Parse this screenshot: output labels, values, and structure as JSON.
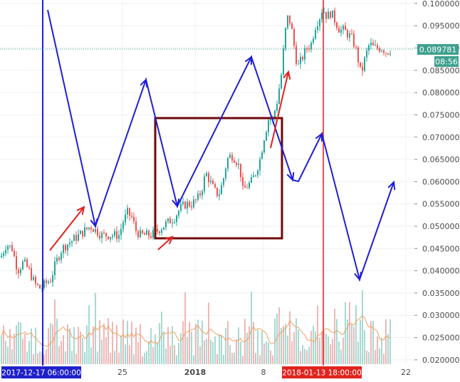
{
  "chart_data": {
    "type": "candlestick",
    "instrument_price_axis": {
      "ticks": [
        "0.100000",
        "0.095000",
        "0.090000",
        "0.085000",
        "0.080000",
        "0.075000",
        "0.070000",
        "0.065000",
        "0.060000",
        "0.055000",
        "0.050000",
        "0.045000",
        "0.040000",
        "0.035000",
        "0.030000",
        "0.025000",
        "0.020000"
      ],
      "range": [
        0.0195,
        0.1003
      ]
    },
    "time_axis": {
      "labels": [
        "25",
        "2018",
        "8",
        "22"
      ],
      "start_badge": "2017-12-17 06:00:00",
      "end_badge": "2018-01-13 18:00:00"
    },
    "last_price": "0.089781",
    "countdown": "08:56",
    "price_path": [
      [
        0,
        0.043
      ],
      [
        8,
        0.046
      ],
      [
        16,
        0.045
      ],
      [
        24,
        0.04
      ],
      [
        32,
        0.042
      ],
      [
        40,
        0.04
      ],
      [
        48,
        0.037
      ],
      [
        56,
        0.036
      ],
      [
        62,
        0.037
      ],
      [
        70,
        0.038
      ],
      [
        78,
        0.042
      ],
      [
        86,
        0.045
      ],
      [
        94,
        0.046
      ],
      [
        102,
        0.047
      ],
      [
        110,
        0.048
      ],
      [
        118,
        0.049
      ],
      [
        126,
        0.05
      ],
      [
        134,
        0.049
      ],
      [
        142,
        0.048
      ],
      [
        150,
        0.048
      ],
      [
        158,
        0.048
      ],
      [
        166,
        0.048
      ],
      [
        172,
        0.051
      ],
      [
        178,
        0.053
      ],
      [
        184,
        0.052
      ],
      [
        190,
        0.049
      ],
      [
        196,
        0.048
      ],
      [
        204,
        0.048
      ],
      [
        212,
        0.048
      ],
      [
        220,
        0.049
      ],
      [
        228,
        0.05
      ],
      [
        236,
        0.051
      ],
      [
        244,
        0.052
      ],
      [
        252,
        0.054
      ],
      [
        260,
        0.055
      ],
      [
        268,
        0.055
      ],
      [
        276,
        0.056
      ],
      [
        282,
        0.058
      ],
      [
        288,
        0.062
      ],
      [
        294,
        0.06
      ],
      [
        300,
        0.058
      ],
      [
        306,
        0.057
      ],
      [
        312,
        0.06
      ],
      [
        318,
        0.065
      ],
      [
        324,
        0.066
      ],
      [
        330,
        0.065
      ],
      [
        336,
        0.063
      ],
      [
        340,
        0.058
      ],
      [
        346,
        0.059
      ],
      [
        352,
        0.06
      ],
      [
        358,
        0.062
      ],
      [
        364,
        0.065
      ],
      [
        370,
        0.07
      ],
      [
        376,
        0.074
      ],
      [
        382,
        0.074
      ],
      [
        388,
        0.078
      ],
      [
        394,
        0.084
      ],
      [
        398,
        0.091
      ],
      [
        402,
        0.097
      ],
      [
        406,
        0.096
      ],
      [
        410,
        0.093
      ],
      [
        414,
        0.088
      ],
      [
        418,
        0.086
      ],
      [
        424,
        0.088
      ],
      [
        430,
        0.09
      ],
      [
        436,
        0.091
      ],
      [
        442,
        0.095
      ],
      [
        448,
        0.097
      ],
      [
        452,
        0.099
      ],
      [
        458,
        0.097
      ],
      [
        464,
        0.098
      ],
      [
        470,
        0.096
      ],
      [
        476,
        0.094
      ],
      [
        482,
        0.094
      ],
      [
        488,
        0.093
      ],
      [
        494,
        0.092
      ],
      [
        500,
        0.089
      ],
      [
        506,
        0.084
      ],
      [
        512,
        0.088
      ],
      [
        518,
        0.091
      ],
      [
        524,
        0.09
      ],
      [
        530,
        0.09
      ],
      [
        536,
        0.09
      ],
      [
        542,
        0.089
      ],
      [
        548,
        0.0898
      ]
    ],
    "grid": true,
    "annotations": "hand-drawn arrows, vertical time markers and a rectangle"
  },
  "colors": {
    "up": "#26a69a",
    "down": "#ef5350",
    "vol_up": "#a7d9d2",
    "vol_down": "#f2b6b6",
    "grid": "#eef0f4",
    "blue": "#1f1fd6",
    "red": "#e61e1e",
    "maroon": "#6e0a0a",
    "price_badge": "#3ea08f",
    "ma": "#f0a060",
    "start_badge_bg": "#2020cc",
    "end_badge_bg": "#e0241e"
  }
}
